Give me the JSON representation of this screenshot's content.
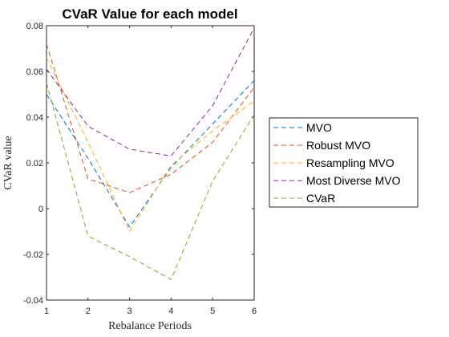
{
  "chart_data": {
    "type": "line",
    "title": "CVaR Value for each model",
    "xlabel": "Rebalance Periods",
    "ylabel": "CVaR value",
    "x": [
      1,
      2,
      3,
      4,
      5,
      6
    ],
    "xlim": [
      1,
      6
    ],
    "ylim": [
      -0.04,
      0.08
    ],
    "xticks": [
      "1",
      "2",
      "3",
      "4",
      "5",
      "6"
    ],
    "yticks": [
      "-0.04",
      "-0.02",
      "0",
      "0.02",
      "0.04",
      "0.06",
      "0.08"
    ],
    "grid": false,
    "legend_position": "outside-right",
    "line_style": "dashed",
    "series": [
      {
        "name": "MVO",
        "color": "#0072BD",
        "values": [
          0.05,
          0.022,
          -0.008,
          0.018,
          0.037,
          0.056
        ]
      },
      {
        "name": "Robust MVO",
        "color": "#D95319",
        "values": [
          0.072,
          0.013,
          0.007,
          0.015,
          0.029,
          0.053
        ]
      },
      {
        "name": "Resampling MVO",
        "color": "#EDB120",
        "values": [
          0.066,
          0.029,
          -0.01,
          0.019,
          0.034,
          0.047
        ]
      },
      {
        "name": "Most Diverse MVO",
        "color": "#7E2F8E",
        "values": [
          0.061,
          0.036,
          0.026,
          0.023,
          0.045,
          0.079
        ]
      },
      {
        "name": "CVaR",
        "color": "#77AC30",
        "values": [
          0.055,
          -0.012,
          -0.021,
          -0.031,
          0.012,
          0.041
        ]
      }
    ]
  }
}
